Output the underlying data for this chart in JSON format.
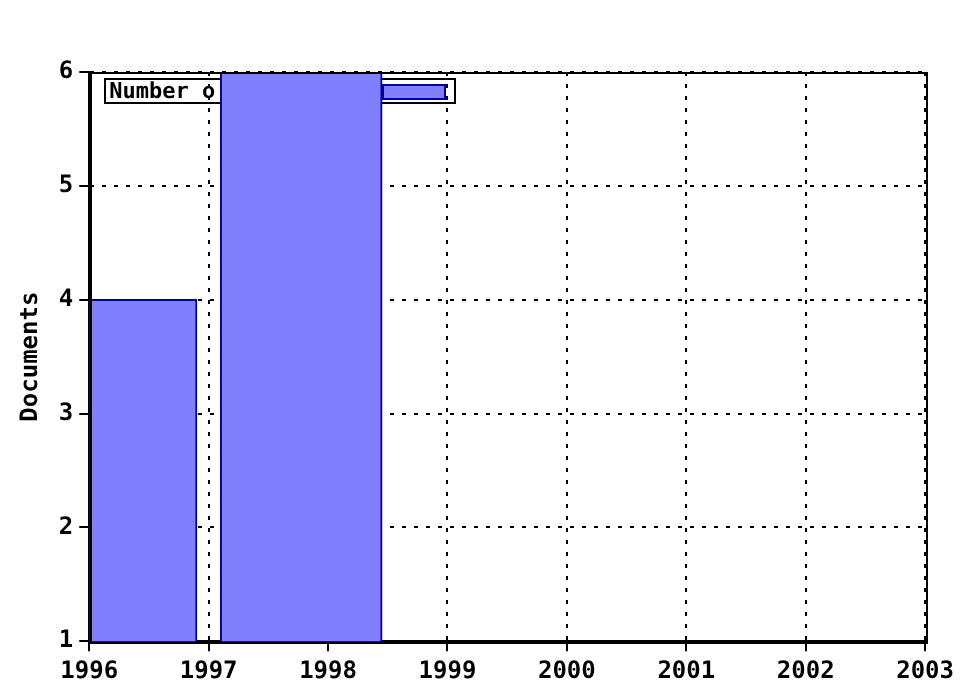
{
  "chart_data": {
    "type": "histogram",
    "ylabel": "Documents",
    "bins": [
      1996,
      1996.9,
      1997.1,
      1998.45
    ],
    "series": [
      {
        "name": "Number o",
        "color": "#8080ff",
        "values": [
          4,
          null,
          6
        ]
      }
    ],
    "xlim": [
      1996,
      2003
    ],
    "xticks": [
      1996,
      1997,
      1998,
      1999,
      2000,
      2001,
      2002,
      2003
    ],
    "ylim": [
      1,
      6
    ],
    "yticks": [
      1,
      2,
      3,
      4,
      5,
      6
    ],
    "grid": true,
    "legend": "top left"
  }
}
